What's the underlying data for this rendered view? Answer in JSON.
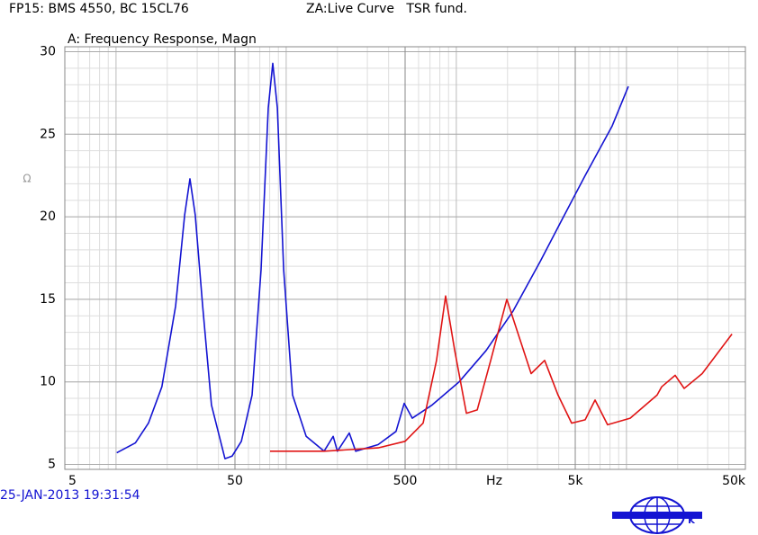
{
  "header": {
    "left": "FP15: BMS 4550, BC 15CL76",
    "right": "ZA:Live Curve   TSR fund."
  },
  "timestamp": "25-JAN-2013 19:31:54",
  "logo": {
    "left": "B",
    "right": "K"
  },
  "chart_data": {
    "type": "line",
    "title": "A: Frequency Response, Magn",
    "ylabel": "Ω",
    "xlabel": "Hz",
    "xscale": "log",
    "xlim": [
      5,
      50000
    ],
    "xticks": [
      5,
      50,
      500,
      {
        "value": 5000,
        "label": "5k"
      },
      {
        "value": 50000,
        "label": "50k"
      }
    ],
    "ylim": [
      4.7,
      30.3
    ],
    "yticks": [
      5,
      10,
      15,
      20,
      25,
      30
    ],
    "grid": true,
    "series": [
      {
        "name": "blue",
        "color": "#1414d2",
        "x": [
          10.1,
          13,
          15.5,
          18.6,
          22.4,
          25.3,
          27.2,
          29.2,
          32.3,
          36.4,
          43.7,
          48.1,
          54.5,
          63,
          71.2,
          78.5,
          83.4,
          88.7,
          96.6,
          109,
          131,
          167,
          189,
          200,
          235,
          256,
          347,
          442,
          494,
          551,
          721,
          1038,
          1496,
          2158,
          3112,
          4216,
          5716,
          8240,
          10255
        ],
        "values": [
          5.7,
          6.3,
          7.5,
          9.7,
          14.6,
          20.1,
          22.3,
          20.1,
          14.6,
          8.6,
          5.35,
          5.5,
          6.4,
          9.2,
          16.8,
          26.6,
          29.3,
          26.6,
          16.8,
          9.2,
          6.7,
          5.8,
          6.7,
          5.8,
          6.9,
          5.8,
          6.2,
          7.0,
          8.7,
          7.8,
          8.6,
          10.0,
          11.9,
          14.3,
          17.3,
          19.9,
          22.5,
          25.5,
          27.9
        ]
      },
      {
        "name": "red",
        "color": "#e01414",
        "x": [
          80.4,
          167,
          347,
          500,
          638,
          765,
          865,
          978,
          1146,
          1326,
          1592,
          1982,
          2293,
          2752,
          3304,
          3963,
          4762,
          5716,
          6534,
          7745,
          10515,
          15135,
          16105,
          19320,
          21825,
          27860,
          41690
        ],
        "values": [
          5.8,
          5.8,
          6.0,
          6.4,
          7.5,
          11.3,
          15.2,
          11.9,
          8.1,
          8.3,
          11.3,
          15.0,
          13.0,
          10.5,
          11.3,
          9.2,
          7.5,
          7.7,
          8.9,
          7.4,
          7.8,
          9.2,
          9.7,
          10.4,
          9.6,
          10.5,
          12.9
        ]
      }
    ]
  }
}
